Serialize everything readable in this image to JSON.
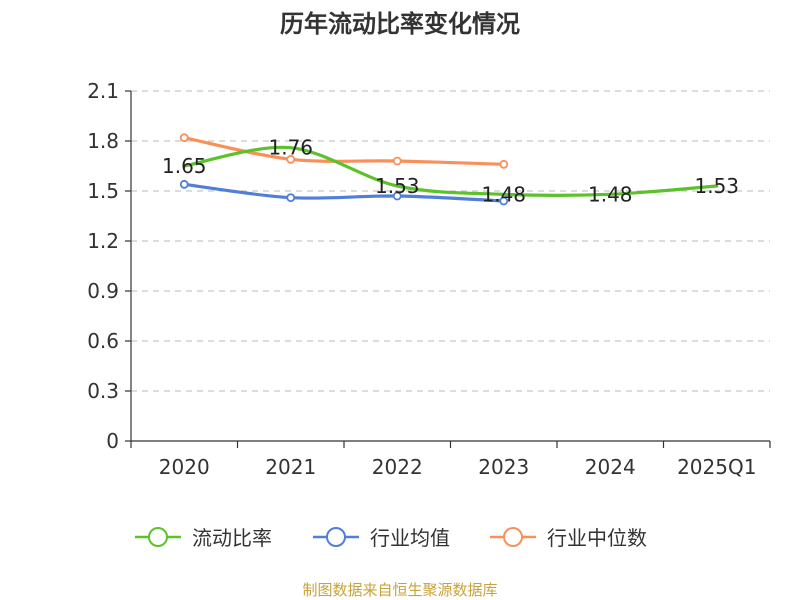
{
  "chart_data": {
    "type": "line",
    "title": "历年流动比率变化情况",
    "xlabel": "",
    "ylabel": "",
    "categories": [
      "2020",
      "2021",
      "2022",
      "2023",
      "2024",
      "2025Q1"
    ],
    "ylim": [
      0,
      2.1
    ],
    "yticks": [
      "0",
      "0.3",
      "0.6",
      "0.9",
      "1.2",
      "1.5",
      "1.8",
      "2.1"
    ],
    "grid": true,
    "legend": "bottom",
    "series": [
      {
        "name": "流动比率",
        "color": "#5cc22a",
        "values": [
          1.65,
          1.76,
          1.53,
          1.48,
          1.48,
          1.53
        ],
        "labels": [
          "1.65",
          "1.76",
          "1.53",
          "1.48",
          "1.48",
          "1.53"
        ],
        "show_markers": false
      },
      {
        "name": "行业均值",
        "color": "#4f7fd8",
        "values": [
          1.54,
          1.46,
          1.47,
          1.44,
          null,
          null
        ],
        "show_markers": true
      },
      {
        "name": "行业中位数",
        "color": "#f9905a",
        "values": [
          1.82,
          1.69,
          1.68,
          1.66,
          null,
          null
        ],
        "show_markers": true
      }
    ]
  },
  "source": "制图数据来自恒生聚源数据库"
}
